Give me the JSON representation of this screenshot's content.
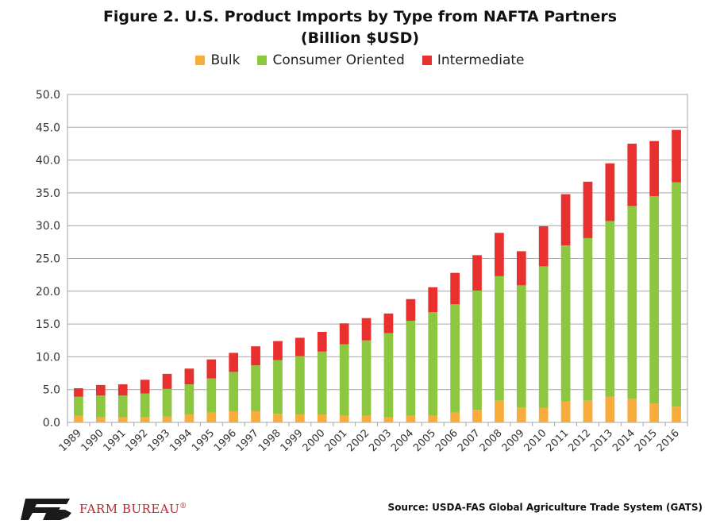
{
  "colors": {
    "bulk": "#f7ac3b",
    "consumer": "#8dc63f",
    "intermediate": "#e8312f",
    "brand": "#c1272d"
  },
  "chart_data": {
    "type": "bar",
    "stacked": true,
    "title": "Figure 2. U.S. Product Imports by Type from NAFTA Partners",
    "subtitle": "(Billion $USD)",
    "xlabel": "",
    "ylabel": "",
    "ylim": [
      0,
      50
    ],
    "yticks": [
      "0.0",
      "5.0",
      "10.0",
      "15.0",
      "20.0",
      "25.0",
      "30.0",
      "35.0",
      "40.0",
      "45.0",
      "50.0"
    ],
    "grid": true,
    "legend_position": "top",
    "categories": [
      "1989",
      "1990",
      "1991",
      "1992",
      "1993",
      "1994",
      "1995",
      "1996",
      "1997",
      "1998",
      "1999",
      "2000",
      "2001",
      "2002",
      "2003",
      "2004",
      "2005",
      "2006",
      "2007",
      "2008",
      "2009",
      "2010",
      "2011",
      "2012",
      "2013",
      "2014",
      "2015",
      "2016"
    ],
    "series": [
      {
        "name": "Bulk",
        "values": [
          1.0,
          0.8,
          0.8,
          0.8,
          0.9,
          1.2,
          1.5,
          1.7,
          1.7,
          1.3,
          1.2,
          1.2,
          1.0,
          1.0,
          0.8,
          1.0,
          1.0,
          1.5,
          1.9,
          3.3,
          2.3,
          2.2,
          3.2,
          3.3,
          3.9,
          3.6,
          2.9,
          2.4
        ]
      },
      {
        "name": "Consumer Oriented",
        "values": [
          2.9,
          3.3,
          3.3,
          3.6,
          4.2,
          4.6,
          5.2,
          6.0,
          7.0,
          8.2,
          8.9,
          9.6,
          10.9,
          11.5,
          12.8,
          14.5,
          15.8,
          16.5,
          18.2,
          19.0,
          18.6,
          21.6,
          23.8,
          24.8,
          26.8,
          29.4,
          31.6,
          34.2
        ]
      },
      {
        "name": "Intermediate",
        "values": [
          1.3,
          1.6,
          1.7,
          2.1,
          2.3,
          2.4,
          2.9,
          2.9,
          2.9,
          2.9,
          2.8,
          3.0,
          3.2,
          3.4,
          3.0,
          3.3,
          3.8,
          4.8,
          5.4,
          6.6,
          5.2,
          6.1,
          7.8,
          8.6,
          8.8,
          9.5,
          8.4,
          8.0
        ]
      }
    ]
  },
  "footer": {
    "source": "Source: USDA-FAS Global Agriculture Trade System (GATS)",
    "logo_text": "FARM BUREAU",
    "logo_mark": "®"
  }
}
